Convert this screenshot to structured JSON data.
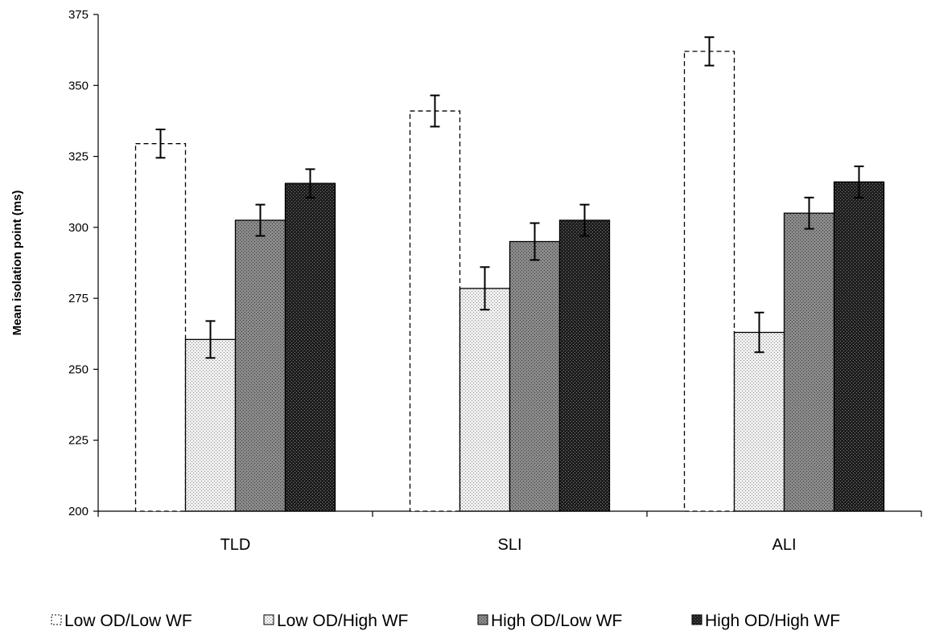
{
  "chart_data": {
    "type": "bar",
    "title": "",
    "xlabel": "",
    "ylabel": "Mean isolation point (ms)",
    "ylim": [
      200,
      375
    ],
    "yticks": [
      200,
      225,
      250,
      275,
      300,
      325,
      350,
      375
    ],
    "categories": [
      "TLD",
      "SLI",
      "ALI"
    ],
    "grid": false,
    "legend_position": "bottom",
    "series": [
      {
        "name": "Low OD/Low WF",
        "values": [
          329.5,
          341,
          362
        ],
        "errors": [
          5,
          5.5,
          5
        ],
        "fill": "#ffffff",
        "pattern": "none",
        "stroke": "dashed"
      },
      {
        "name": "Low OD/High WF",
        "values": [
          260.5,
          278.5,
          263
        ],
        "errors": [
          6.5,
          7.5,
          7
        ],
        "fill": "#e4e4e4",
        "pattern": "light-dots",
        "stroke": "solid"
      },
      {
        "name": "High OD/Low WF",
        "values": [
          302.5,
          295,
          305
        ],
        "errors": [
          5.5,
          6.5,
          5.5
        ],
        "fill": "#7a7a7a",
        "pattern": "medium-dots",
        "stroke": "solid"
      },
      {
        "name": "High OD/High WF",
        "values": [
          315.5,
          302.5,
          316
        ],
        "errors": [
          5,
          5.5,
          5.5
        ],
        "fill": "#2a2a2a",
        "pattern": "dark-dots",
        "stroke": "solid"
      }
    ]
  }
}
